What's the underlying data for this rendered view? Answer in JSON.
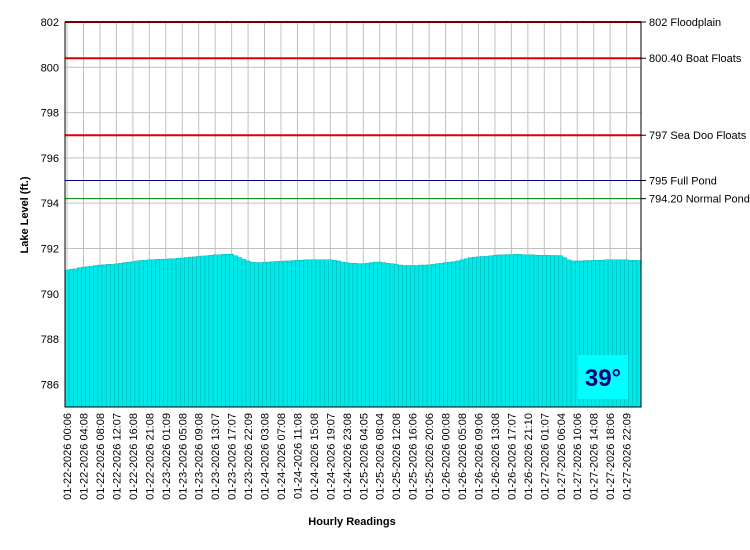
{
  "chart_data": {
    "type": "bar",
    "y_axis_title": "Lake Level (ft.)",
    "x_axis_title": "Hourly Readings",
    "annotation": "39°",
    "color": "#00e8e8",
    "grid": true,
    "ylim": [
      785,
      802
    ],
    "yticks": [
      786,
      788,
      790,
      792,
      794,
      796,
      798,
      800,
      802
    ],
    "reference_lines": [
      {
        "value": 802,
        "label": "802 Floodplain",
        "color": "#e00000"
      },
      {
        "value": 800.4,
        "label": "800.40 Boat Floats",
        "color": "#e00000"
      },
      {
        "value": 797,
        "label": "797 Sea Doo Floats",
        "color": "#e00000"
      },
      {
        "value": 795,
        "label": "795 Full Pond",
        "color": "#000080"
      },
      {
        "value": 794.2,
        "label": "794.20 Normal Pond",
        "color": "#008000"
      }
    ],
    "categories": [
      "01-22-2026 00:06",
      null,
      null,
      null,
      "01-22-2026 04:08",
      null,
      null,
      null,
      "01-22-2026 08:08",
      null,
      null,
      null,
      "01-22-2026 12:07",
      null,
      null,
      null,
      "01-22-2026 16:08",
      null,
      null,
      null,
      "01-22-2026 21:08",
      null,
      null,
      null,
      "01-23-2026 01:09",
      null,
      null,
      null,
      "01-23-2026 05:08",
      null,
      null,
      null,
      "01-23-2026 09:08",
      null,
      null,
      null,
      "01-23-2026 13:07",
      null,
      null,
      null,
      "01-23-2026 17:07",
      null,
      null,
      null,
      "01-23-2026 22:09",
      null,
      null,
      null,
      "01-24-2026 03:08",
      null,
      null,
      null,
      "01-24-2026 07:08",
      null,
      null,
      null,
      "01-24-2026 11:08",
      null,
      null,
      null,
      "01-24-2026 15:08",
      null,
      null,
      null,
      "01-24-2026 19:07",
      null,
      null,
      null,
      "01-24-2026 23:08",
      null,
      null,
      null,
      "01-25-2026 04:05",
      null,
      null,
      null,
      "01-25-2026 08:04",
      null,
      null,
      null,
      "01-25-2026 12:08",
      null,
      null,
      null,
      "01-25-2026 16:06",
      null,
      null,
      null,
      "01-25-2026 20:06",
      null,
      null,
      null,
      "01-26-2026 00:08",
      null,
      null,
      null,
      "01-26-2026 05:08",
      null,
      null,
      null,
      "01-26-2026 09:06",
      null,
      null,
      null,
      "01-26-2026 13:08",
      null,
      null,
      null,
      "01-26-2026 17:07",
      null,
      null,
      null,
      "01-26-2026 21:10",
      null,
      null,
      null,
      "01-27-2026 01:07",
      null,
      null,
      null,
      "01-27-2026 06:04",
      null,
      null,
      null,
      "01-27-2026 10:06",
      null,
      null,
      null,
      "01-27-2026 14:08",
      null,
      null,
      null,
      "01-27-2026 18:06",
      null,
      null,
      null,
      "01-27-2026 22:09",
      null,
      null,
      null
    ],
    "values": [
      791.05,
      791.08,
      791.1,
      791.15,
      791.18,
      791.2,
      791.22,
      791.25,
      791.27,
      791.28,
      791.3,
      791.3,
      791.32,
      791.35,
      791.38,
      791.4,
      791.42,
      791.45,
      791.47,
      791.48,
      791.5,
      791.5,
      791.52,
      791.52,
      791.53,
      791.55,
      791.55,
      791.57,
      791.58,
      791.6,
      791.62,
      791.63,
      791.65,
      791.67,
      791.68,
      791.7,
      791.72,
      791.72,
      791.74,
      791.75,
      791.75,
      791.68,
      791.6,
      791.52,
      791.45,
      791.4,
      791.38,
      791.38,
      791.4,
      791.4,
      791.42,
      791.43,
      791.43,
      791.45,
      791.45,
      791.47,
      791.48,
      791.48,
      791.5,
      791.5,
      791.5,
      791.5,
      791.5,
      791.5,
      791.5,
      791.48,
      791.45,
      791.4,
      791.38,
      791.35,
      791.35,
      791.33,
      791.33,
      791.35,
      791.38,
      791.4,
      791.4,
      791.38,
      791.35,
      791.33,
      791.3,
      791.27,
      791.25,
      791.25,
      791.25,
      791.25,
      791.27,
      791.27,
      791.28,
      791.3,
      791.33,
      791.35,
      791.38,
      791.4,
      791.42,
      791.45,
      791.5,
      791.55,
      791.6,
      791.62,
      791.63,
      791.65,
      791.65,
      791.68,
      791.7,
      791.72,
      791.72,
      791.73,
      791.73,
      791.74,
      791.74,
      791.73,
      791.72,
      791.72,
      791.71,
      791.7,
      791.7,
      791.7,
      791.69,
      791.69,
      791.68,
      791.6,
      791.5,
      791.45,
      791.45,
      791.45,
      791.47,
      791.47,
      791.48,
      791.48,
      791.48,
      791.5,
      791.5,
      791.5,
      791.5,
      791.5,
      791.5,
      791.48,
      791.48,
      791.47
    ]
  }
}
